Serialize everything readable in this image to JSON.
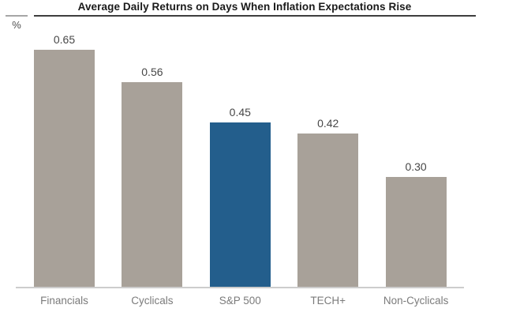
{
  "header": {
    "title": "Average Daily Returns on Days When Inflation Expectations Rise",
    "unit_label": "%"
  },
  "chart_data": {
    "type": "bar",
    "title": "Average Daily Returns on Days When Inflation Expectations Rise",
    "xlabel": "",
    "ylabel": "%",
    "categories": [
      "Financials",
      "Cyclicals",
      "S&P 500",
      "TECH+",
      "Non-Cyclicals"
    ],
    "values": [
      0.65,
      0.56,
      0.45,
      0.42,
      0.3
    ],
    "value_labels": [
      "0.65",
      "0.56",
      "0.45",
      "0.42",
      "0.30"
    ],
    "highlight_index": 2,
    "ylim": [
      0,
      0.72
    ],
    "grid": false,
    "legend": "none",
    "colors": {
      "bar_default": "#a8a199",
      "bar_highlight": "#235e8c",
      "title_text": "#1a1a1a",
      "title_underline": "#3e3e3e",
      "value_label_text": "#474747",
      "category_label_text": "#7b7b7b",
      "axis_line": "#cdcdcd"
    }
  }
}
